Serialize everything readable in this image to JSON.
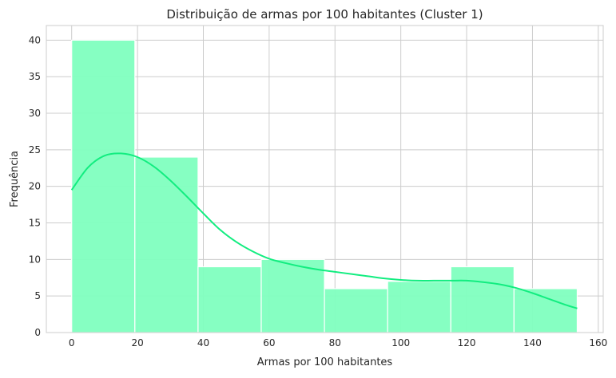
{
  "chart_data": {
    "type": "bar",
    "title": "Distribuição de armas por 100 habitantes (Cluster 1)",
    "xlabel": "Armas por 100 habitantes",
    "ylabel": "Frequência",
    "xlim": [
      -7.7,
      161.5
    ],
    "ylim": [
      0,
      42
    ],
    "xticks": [
      0,
      20,
      40,
      60,
      80,
      100,
      120,
      140,
      160
    ],
    "yticks": [
      0,
      5,
      10,
      15,
      20,
      25,
      30,
      35,
      40
    ],
    "grid": true,
    "bins": [
      {
        "x0": 0.0,
        "x1": 19.2,
        "count": 40
      },
      {
        "x0": 19.2,
        "x1": 38.4,
        "count": 24
      },
      {
        "x0": 38.4,
        "x1": 57.6,
        "count": 9
      },
      {
        "x0": 57.6,
        "x1": 76.8,
        "count": 10
      },
      {
        "x0": 76.8,
        "x1": 96.0,
        "count": 6
      },
      {
        "x0": 96.0,
        "x1": 115.2,
        "count": 7
      },
      {
        "x0": 115.2,
        "x1": 134.4,
        "count": 9
      },
      {
        "x0": 134.4,
        "x1": 153.6,
        "count": 6
      }
    ],
    "kde": {
      "x": [
        0,
        5,
        10,
        15,
        20,
        25,
        30,
        35,
        40,
        45,
        50,
        55,
        60,
        65,
        70,
        75,
        80,
        85,
        90,
        95,
        100,
        105,
        110,
        115,
        120,
        125,
        130,
        135,
        140,
        145,
        150,
        153.6
      ],
      "y": [
        19.5,
        22.6,
        24.2,
        24.5,
        24.0,
        22.7,
        20.8,
        18.6,
        16.3,
        14.1,
        12.4,
        11.1,
        10.1,
        9.5,
        9.0,
        8.6,
        8.3,
        8.0,
        7.7,
        7.4,
        7.2,
        7.1,
        7.1,
        7.1,
        7.1,
        6.9,
        6.6,
        6.1,
        5.4,
        4.6,
        3.8,
        3.3
      ]
    },
    "colors": {
      "bar_fill": "#80ffbf",
      "bar_opacity": 0.95,
      "kde_line": "#12ed80",
      "grid": "#cccccc",
      "spine": "#cccccc"
    }
  }
}
